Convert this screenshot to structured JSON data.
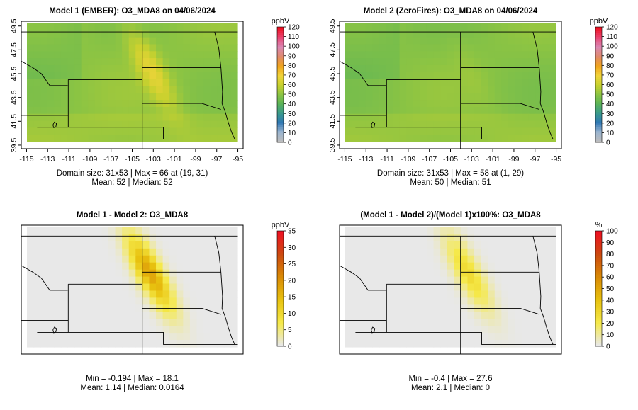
{
  "colors": {
    "abs_scale": [
      "#bdbdbd",
      "#9bb4cf",
      "#2f77b4",
      "#3a9a8c",
      "#5bb458",
      "#8cc443",
      "#c8d12e",
      "#f2d43a",
      "#f0a31c",
      "#e08a6c",
      "#d989b5",
      "#e94572",
      "#ee1122"
    ],
    "diff_scale": [
      "#e8e8e8",
      "#f5e94a",
      "#e8c20f",
      "#d98b06",
      "#cc4b10",
      "#ee1122"
    ],
    "map_lines": "#000000",
    "missing": "#ffffff"
  },
  "chart_data": [
    {
      "id": "model1",
      "type": "heatmap",
      "title": "Model 1 (EMBER): O3_MDA8 on 04/06/2024",
      "units_label": "ppbV",
      "xlim": [
        -115.5,
        -94.5
      ],
      "ylim": [
        39.2,
        49.9
      ],
      "xticks": [
        -115,
        -113,
        -111,
        -109,
        -107,
        -105,
        -103,
        -101,
        -99,
        -97,
        -95
      ],
      "yticks": [
        39.5,
        41.5,
        43.5,
        45.5,
        47.5,
        49.5
      ],
      "x_tick_labels": [
        "-115",
        "-113",
        "-111",
        "-109",
        "-107",
        "-105",
        "-103",
        "-101",
        "-99",
        "-97",
        "-95"
      ],
      "y_tick_labels": [
        "39.5",
        "41.5",
        "43.5",
        "45.5",
        "47.5",
        "49.5"
      ],
      "colorbar": {
        "min": 0,
        "max": 120,
        "ticks": [
          "0",
          "10",
          "20",
          "30",
          "40",
          "50",
          "60",
          "70",
          "80",
          "90",
          "100",
          "110",
          "120"
        ],
        "scale": "abs"
      },
      "field": {
        "base": 50,
        "plume_amp": 16,
        "plume_x": -103.2,
        "plume_y": 45.8,
        "plume_sx": 0.9,
        "plume_sy": 2.4,
        "tilt": -0.55,
        "gradient": 5
      },
      "stats_line1": "Domain size: 31x53 | Max = 66 at (19, 31)",
      "stats_line2": "Mean: 52 |  Median: 52",
      "stats": {
        "domain": "31x53",
        "max": 66,
        "max_at": "(19, 31)",
        "mean": 52,
        "median": 52
      }
    },
    {
      "id": "model2",
      "type": "heatmap",
      "title": "Model 2 (ZeroFires): O3_MDA8 on 04/06/2024",
      "units_label": "ppbV",
      "xlim": [
        -115.5,
        -94.5
      ],
      "ylim": [
        39.2,
        49.9
      ],
      "xticks": [
        -115,
        -113,
        -111,
        -109,
        -107,
        -105,
        -103,
        -101,
        -99,
        -97,
        -95
      ],
      "yticks": [
        39.5,
        41.5,
        43.5,
        45.5,
        47.5,
        49.5
      ],
      "x_tick_labels": [
        "-115",
        "-113",
        "-111",
        "-109",
        "-107",
        "-105",
        "-103",
        "-101",
        "-99",
        "-97",
        "-95"
      ],
      "y_tick_labels": [
        "39.5",
        "41.5",
        "43.5",
        "45.5",
        "47.5",
        "49.5"
      ],
      "colorbar": {
        "min": 0,
        "max": 120,
        "ticks": [
          "0",
          "10",
          "20",
          "30",
          "40",
          "50",
          "60",
          "70",
          "80",
          "90",
          "100",
          "110",
          "120"
        ],
        "scale": "abs"
      },
      "field": {
        "base": 49,
        "plume_amp": 2,
        "plume_x": -103.2,
        "plume_y": 45.8,
        "plume_sx": 0.9,
        "plume_sy": 2.4,
        "tilt": -0.55,
        "gradient": 5
      },
      "stats_line1": "Domain size: 31x53 | Max = 58 at (1, 29)",
      "stats_line2": "Mean: 50 |  Median: 51",
      "stats": {
        "domain": "31x53",
        "max": 58,
        "max_at": "(1, 29)",
        "mean": 50,
        "median": 51
      }
    },
    {
      "id": "diff",
      "type": "heatmap",
      "title": "Model 1 - Model 2: O3_MDA8",
      "units_label": "ppbV",
      "xlim": [
        -115.5,
        -94.5
      ],
      "ylim": [
        39.2,
        49.9
      ],
      "colorbar": {
        "min": 0,
        "max": 35,
        "ticks": [
          "0",
          "5",
          "10",
          "15",
          "20",
          "25",
          "30",
          "35"
        ],
        "scale": "diff"
      },
      "field": {
        "base": 0,
        "plume_amp": 18,
        "plume_x": -103.3,
        "plume_y": 45.9,
        "plume_sx": 0.9,
        "plume_sy": 2.2,
        "tilt": -0.55,
        "gradient": 0
      },
      "stats_line1": "Min = -0.194 | Max = 18.1",
      "stats_line2": "Mean: 1.14 |  Median: 0.0164",
      "stats": {
        "min": -0.194,
        "max": 18.1,
        "mean": 1.14,
        "median": 0.0164
      }
    },
    {
      "id": "pct",
      "type": "heatmap",
      "title": "(Model 1 - Model 2)/(Model 1)x100%: O3_MDA8",
      "units_label": "%",
      "xlim": [
        -115.5,
        -94.5
      ],
      "ylim": [
        39.2,
        49.9
      ],
      "colorbar": {
        "min": 0,
        "max": 100,
        "ticks": [
          "0",
          "10",
          "20",
          "30",
          "40",
          "50",
          "60",
          "70",
          "80",
          "90",
          "100"
        ],
        "scale": "diff"
      },
      "field": {
        "base": 0,
        "plume_amp": 28,
        "plume_x": -103.3,
        "plume_y": 45.9,
        "plume_sx": 0.9,
        "plume_sy": 2.2,
        "tilt": -0.55,
        "gradient": 0
      },
      "stats_line1": "Min = -0.4 | Max = 27.6",
      "stats_line2": "Mean: 2.1 |  Median: 0",
      "stats": {
        "min": -0.4,
        "max": 27.6,
        "mean": 2.1,
        "median": 0
      }
    }
  ]
}
